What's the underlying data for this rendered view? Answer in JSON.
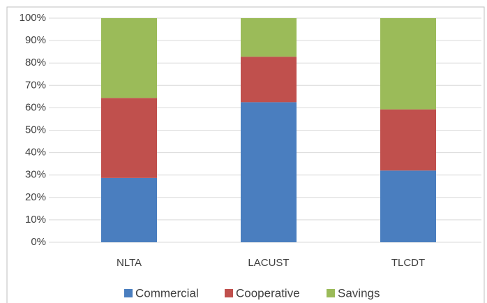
{
  "chart_data": {
    "type": "stacked_bar",
    "categories": [
      "NLTA",
      "LACUST",
      "TLCDT"
    ],
    "series": [
      {
        "name": "Commercial",
        "color": "#4a7ebf",
        "values": [
          28.7,
          62.5,
          32
        ]
      },
      {
        "name": "Cooperative",
        "color": "#c0504d",
        "values": [
          35.7,
          20.3,
          27.3
        ]
      },
      {
        "name": "Savings",
        "color": "#9bbb59",
        "values": [
          35.6,
          17.2,
          40.7
        ]
      }
    ],
    "ylim": [
      0,
      100
    ],
    "yticks": [
      {
        "value": 0,
        "label": "0%"
      },
      {
        "value": 10,
        "label": "10%"
      },
      {
        "value": 20,
        "label": "20%"
      },
      {
        "value": 30,
        "label": "30%"
      },
      {
        "value": 40,
        "label": "40%"
      },
      {
        "value": 50,
        "label": "50%"
      },
      {
        "value": 60,
        "label": "60%"
      },
      {
        "value": 70,
        "label": "70%"
      },
      {
        "value": 80,
        "label": "80%"
      },
      {
        "value": 90,
        "label": "90%"
      },
      {
        "value": 100,
        "label": "100%"
      }
    ],
    "grid": true,
    "legend": "bottom"
  }
}
